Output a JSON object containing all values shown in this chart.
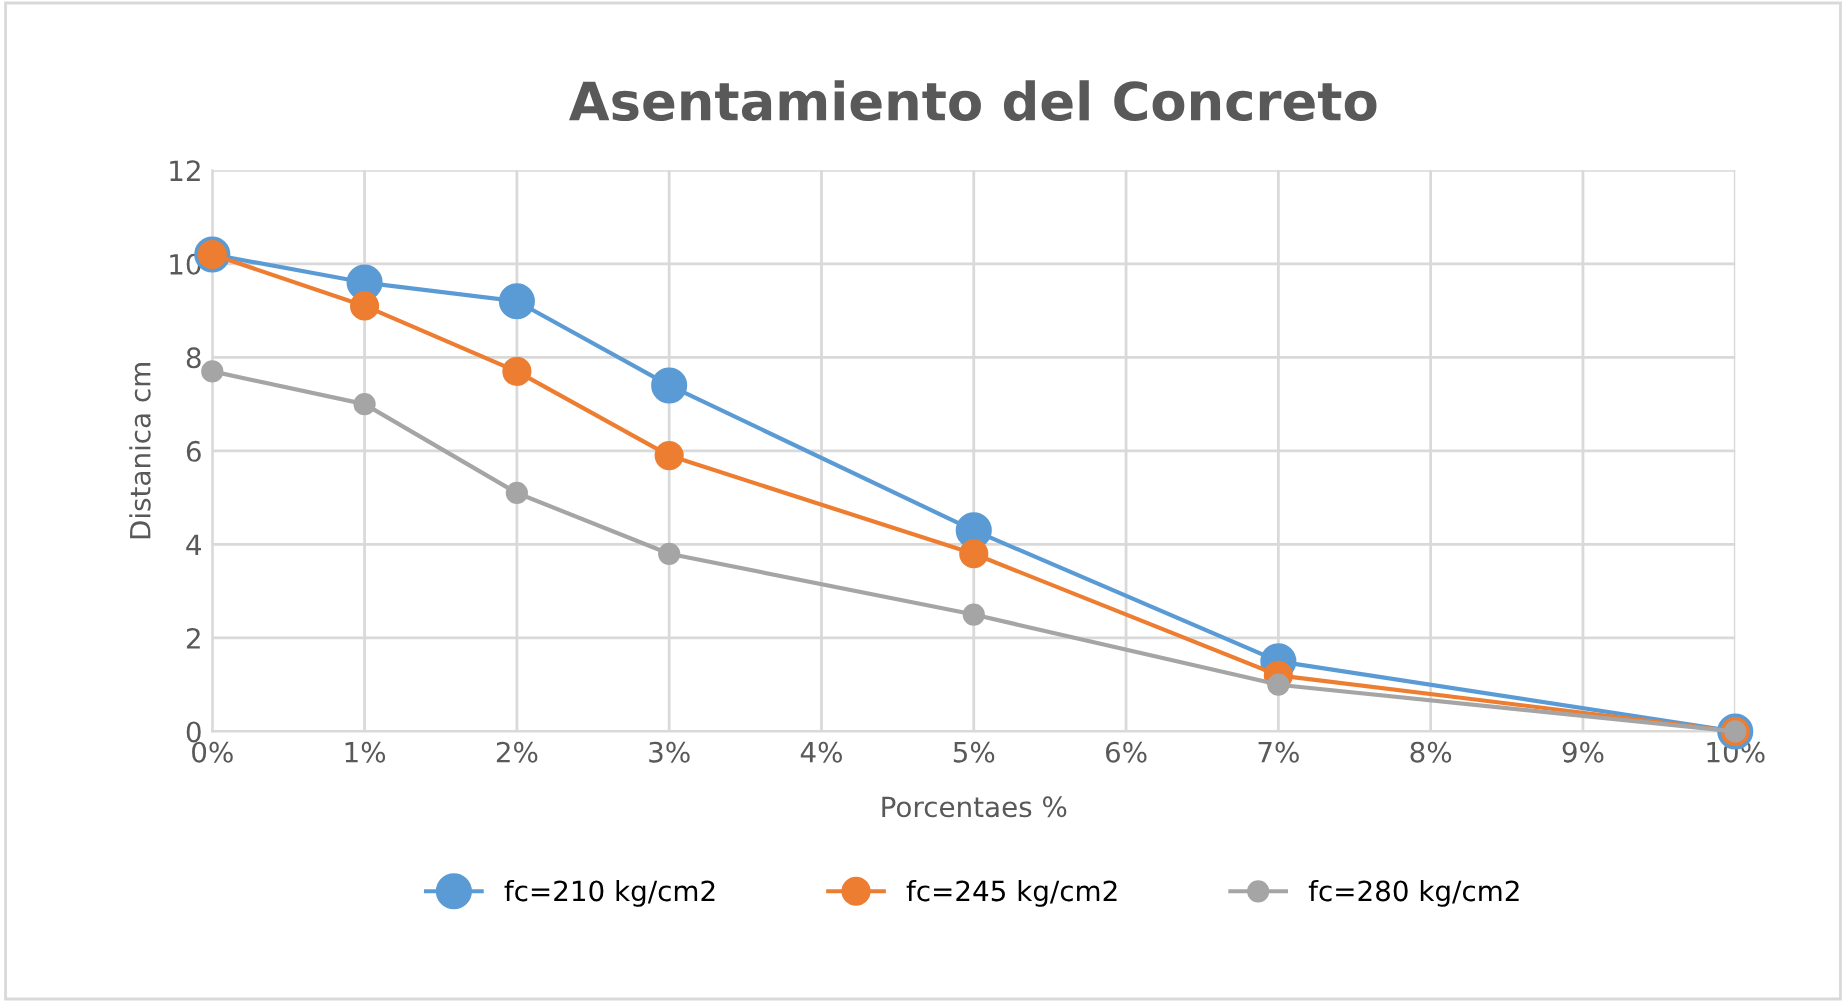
{
  "chart_data": {
    "type": "line",
    "title": "Asentamiento del Concreto",
    "xlabel": "Porcentaes %",
    "ylabel": "Distanica cm",
    "x": [
      0,
      1,
      2,
      3,
      5,
      7,
      10
    ],
    "series": [
      {
        "name": "fc=210 kg/cm2",
        "color": "#5b9bd5",
        "values": [
          10.2,
          9.6,
          9.2,
          7.4,
          4.3,
          1.5,
          0
        ]
      },
      {
        "name": "fc=245 kg/cm2",
        "color": "#ed7d31",
        "values": [
          10.2,
          9.1,
          7.7,
          5.9,
          3.8,
          1.2,
          0
        ]
      },
      {
        "name": "fc=280 kg/cm2",
        "color": "#a5a5a5",
        "values": [
          7.7,
          7.0,
          5.1,
          3.8,
          2.5,
          1.0,
          0
        ]
      }
    ],
    "xlim": [
      0,
      10
    ],
    "xticks": [
      {
        "value": 0,
        "label": "0%"
      },
      {
        "value": 1,
        "label": "1%"
      },
      {
        "value": 2,
        "label": "2%"
      },
      {
        "value": 3,
        "label": "3%"
      },
      {
        "value": 4,
        "label": "4%"
      },
      {
        "value": 5,
        "label": "5%"
      },
      {
        "value": 6,
        "label": "6%"
      },
      {
        "value": 7,
        "label": "7%"
      },
      {
        "value": 8,
        "label": "8%"
      },
      {
        "value": 9,
        "label": "9%"
      },
      {
        "value": 10,
        "label": "10%"
      }
    ],
    "ylim": [
      0,
      12
    ],
    "yticks": [
      0,
      2,
      4,
      6,
      8,
      10,
      12
    ],
    "grid": true,
    "legend": "bottom",
    "marker": "circle",
    "line_style": "solid"
  }
}
